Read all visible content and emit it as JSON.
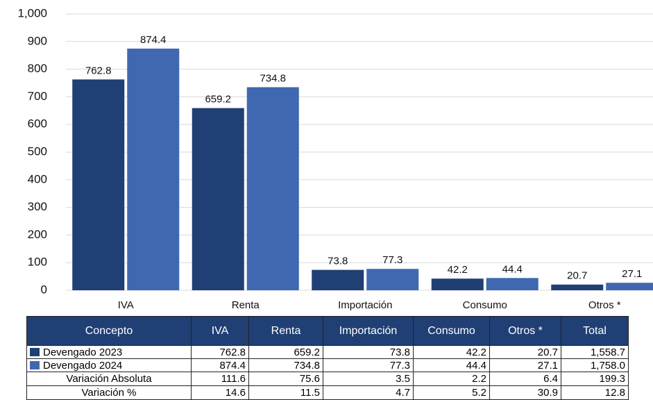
{
  "chart_data": {
    "type": "bar",
    "categories": [
      "IVA",
      "Renta",
      "Importación",
      "Consumo",
      "Otros *"
    ],
    "series": [
      {
        "name": "Devengado 2023",
        "color": "#203f74",
        "values": [
          762.8,
          659.2,
          73.8,
          42.2,
          20.7
        ]
      },
      {
        "name": "Devengado 2024",
        "color": "#4068b0",
        "values": [
          874.4,
          734.8,
          77.3,
          44.4,
          27.1
        ]
      }
    ],
    "ylim": [
      0,
      1000
    ],
    "yticks": [
      0,
      100,
      200,
      300,
      400,
      500,
      600,
      700,
      800,
      900,
      {
        "value": 1000,
        "label": "1,000"
      }
    ],
    "grid": true,
    "table": {
      "columns": [
        "Concepto",
        "IVA",
        "Renta",
        "Importación",
        "Consumo",
        "Otros *",
        "Total"
      ],
      "totals": [
        "1,558.7",
        "1,758.0"
      ],
      "rows": [
        [
          "Variación Absoluta",
          "111.6",
          "75.6",
          "3.5",
          "2.2",
          "6.4",
          "199.3"
        ],
        [
          "Variación %",
          "14.6",
          "11.5",
          "4.7",
          "5.2",
          "30.9",
          "12.8"
        ]
      ]
    }
  }
}
